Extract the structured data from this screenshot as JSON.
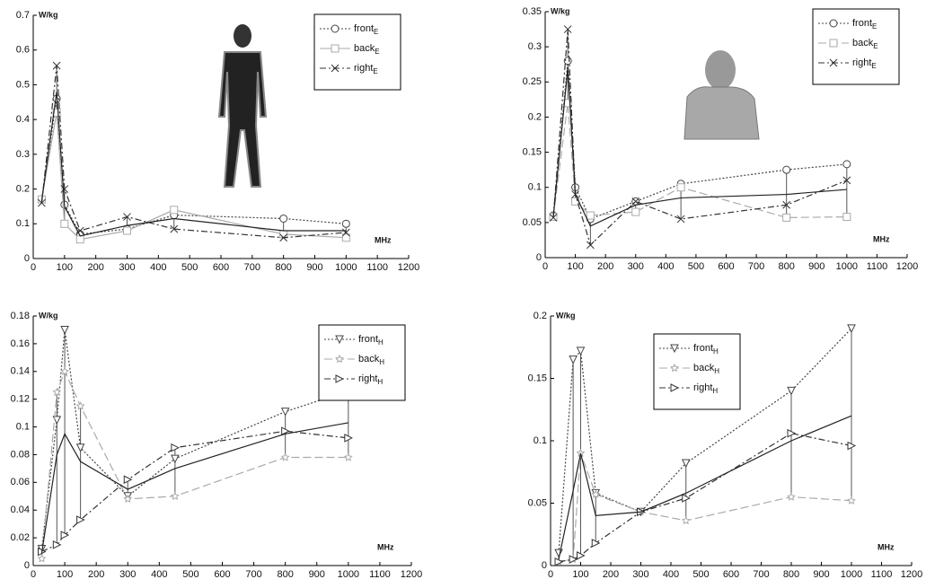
{
  "chart_data": [
    {
      "type": "line",
      "ylabel": "W/kg",
      "xlabel": "MHz",
      "x": [
        27,
        75,
        100,
        150,
        300,
        450,
        800,
        1000
      ],
      "xlim": [
        0,
        1200
      ],
      "xticks": [
        0,
        100,
        200,
        300,
        400,
        500,
        600,
        700,
        800,
        900,
        1000,
        1100,
        1200
      ],
      "ylim": [
        0,
        0.7
      ],
      "yticks": [
        0,
        0.1,
        0.2,
        0.3,
        0.4,
        0.5,
        0.6,
        0.7
      ],
      "legend": "upper right",
      "error_bars": true,
      "series": [
        {
          "name": "front",
          "subscript": "E",
          "color": "#444444",
          "dash": "dotted",
          "marker": "circle",
          "values": [
            0.17,
            0.46,
            0.155,
            0.07,
            0.085,
            0.125,
            0.115,
            0.1
          ]
        },
        {
          "name": "back",
          "subscript": "E",
          "color": "#aaaaaa",
          "dash": "solid",
          "marker": "square",
          "values": [
            0.17,
            0.42,
            0.1,
            0.055,
            0.08,
            0.14,
            0.07,
            0.06
          ]
        },
        {
          "name": "right",
          "subscript": "E",
          "color": "#333333",
          "dash": "dashdot",
          "marker": "x",
          "values": [
            0.16,
            0.555,
            0.2,
            0.08,
            0.12,
            0.085,
            0.06,
            0.075
          ]
        },
        {
          "color": "#222222",
          "dash": "solid",
          "values": [
            0.165,
            0.48,
            0.15,
            0.065,
            0.095,
            0.115,
            0.08,
            0.08
          ]
        }
      ]
    },
    {
      "type": "line",
      "ylabel": "W/kg",
      "xlabel": "MHz",
      "x": [
        27,
        75,
        100,
        150,
        300,
        450,
        800,
        1000
      ],
      "xlim": [
        0,
        1200
      ],
      "xticks": [
        0,
        100,
        200,
        300,
        400,
        500,
        600,
        700,
        800,
        900,
        1000,
        1100,
        1200
      ],
      "ylim": [
        0,
        0.35
      ],
      "yticks": [
        0,
        0.05,
        0.1,
        0.15,
        0.2,
        0.25,
        0.3,
        0.35
      ],
      "legend": "upper right",
      "error_bars": true,
      "series": [
        {
          "name": "front",
          "subscript": "E",
          "color": "#444444",
          "dash": "dotted",
          "marker": "circle",
          "values": [
            0.06,
            0.28,
            0.1,
            0.055,
            0.08,
            0.105,
            0.125,
            0.133
          ]
        },
        {
          "name": "back",
          "subscript": "E",
          "color": "#aaaaaa",
          "dash": "dashed",
          "marker": "square",
          "values": [
            0.058,
            0.22,
            0.08,
            0.06,
            0.065,
            0.1,
            0.057,
            0.058
          ]
        },
        {
          "name": "right",
          "subscript": "E",
          "color": "#333333",
          "dash": "dashdot",
          "marker": "x",
          "values": [
            0.057,
            0.325,
            0.09,
            0.018,
            0.08,
            0.055,
            0.075,
            0.11
          ]
        },
        {
          "color": "#222222",
          "dash": "solid",
          "values": [
            0.058,
            0.27,
            0.09,
            0.045,
            0.075,
            0.085,
            0.09,
            0.097
          ]
        }
      ]
    },
    {
      "type": "line",
      "ylabel": "W/kg",
      "xlabel": "MHz",
      "x": [
        27,
        75,
        100,
        150,
        300,
        450,
        800,
        1000
      ],
      "xlim": [
        0,
        1200
      ],
      "xticks": [
        0,
        100,
        200,
        300,
        400,
        500,
        600,
        700,
        800,
        900,
        1000,
        1100,
        1200
      ],
      "ylim": [
        0,
        0.18
      ],
      "yticks": [
        0,
        0.02,
        0.04,
        0.06,
        0.08,
        0.1,
        0.12,
        0.14,
        0.16,
        0.18
      ],
      "legend": "upper right",
      "error_bars": true,
      "series": [
        {
          "name": "front",
          "subscript": "H",
          "color": "#444444",
          "dash": "dotted",
          "marker": "tri-down",
          "values": [
            0.012,
            0.105,
            0.17,
            0.085,
            0.05,
            0.077,
            0.111,
            0.126
          ]
        },
        {
          "name": "back",
          "subscript": "H",
          "color": "#aaaaaa",
          "dash": "dashed",
          "marker": "star",
          "values": [
            0.005,
            0.125,
            0.14,
            0.115,
            0.048,
            0.05,
            0.078,
            0.078
          ]
        },
        {
          "name": "right",
          "subscript": "H",
          "color": "#333333",
          "dash": "dashdot",
          "marker": "tri-right",
          "values": [
            0.01,
            0.015,
            0.022,
            0.033,
            0.062,
            0.085,
            0.097,
            0.092
          ]
        },
        {
          "color": "#222222",
          "dash": "solid",
          "values": [
            0.009,
            0.08,
            0.095,
            0.075,
            0.055,
            0.07,
            0.095,
            0.103
          ]
        }
      ]
    },
    {
      "type": "line",
      "ylabel": "W/kg",
      "xlabel": "MHz",
      "x": [
        27,
        75,
        100,
        150,
        300,
        450,
        800,
        1000
      ],
      "xlim": [
        0,
        1200
      ],
      "xticks": [
        0,
        100,
        200,
        300,
        400,
        500,
        600,
        700,
        800,
        900,
        1000,
        1100,
        1200
      ],
      "ylim": [
        0,
        0.2
      ],
      "yticks": [
        0,
        0.05,
        0.1,
        0.15,
        0.2
      ],
      "legend": "upper center",
      "error_bars": true,
      "series": [
        {
          "name": "front",
          "subscript": "H",
          "color": "#444444",
          "dash": "dotted",
          "marker": "tri-down",
          "values": [
            0.01,
            0.165,
            0.172,
            0.058,
            0.043,
            0.082,
            0.14,
            0.19
          ]
        },
        {
          "name": "back",
          "subscript": "H",
          "color": "#aaaaaa",
          "dash": "dashed",
          "marker": "star",
          "values": [
            0.003,
            0.005,
            0.09,
            0.057,
            0.043,
            0.036,
            0.055,
            0.052
          ]
        },
        {
          "name": "right",
          "subscript": "H",
          "color": "#333333",
          "dash": "dashdot",
          "marker": "tri-right",
          "values": [
            0.003,
            0.005,
            0.008,
            0.018,
            0.043,
            0.054,
            0.106,
            0.096
          ]
        },
        {
          "color": "#222222",
          "dash": "solid",
          "values": [
            0.005,
            0.06,
            0.09,
            0.04,
            0.043,
            0.058,
            0.1,
            0.12
          ]
        }
      ]
    }
  ]
}
